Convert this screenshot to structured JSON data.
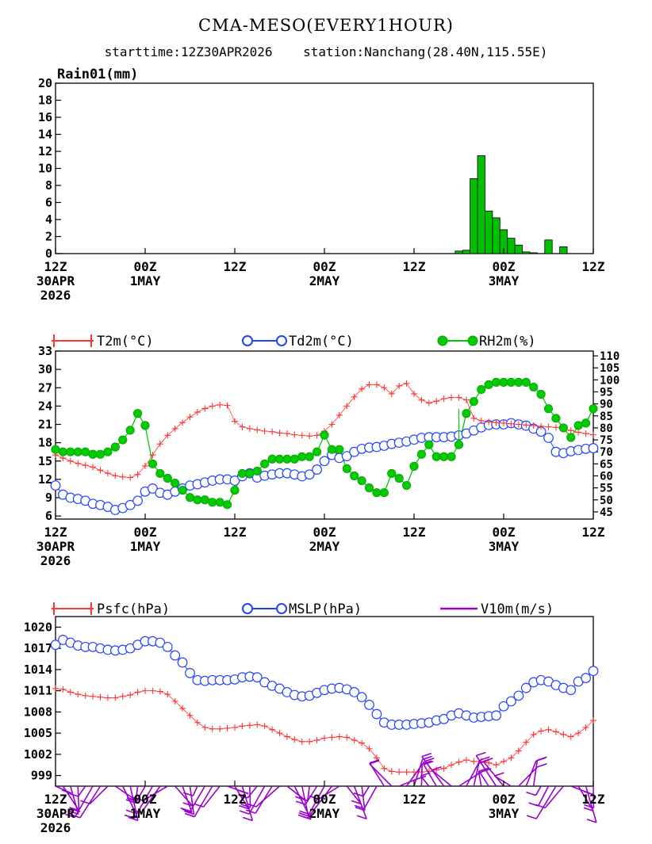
{
  "header": {
    "title": "CMA-MESO(EVERY1HOUR)",
    "subtitle": "starttime:12Z30APR2026    station:Nanchang(28.40N,115.55E)"
  },
  "colors": {
    "rain": "#00c000",
    "t2m": "#ff3333",
    "td2m": "#2244ff",
    "rh2m": "#00cc00",
    "psfc": "#ff3333",
    "mslp": "#2244ff",
    "wind": "#9900cc"
  },
  "x_ticks": [
    {
      "hour": 0,
      "lines": [
        "12Z",
        "30APR",
        "2026"
      ]
    },
    {
      "hour": 12,
      "lines": [
        "00Z",
        "1MAY"
      ]
    },
    {
      "hour": 24,
      "lines": [
        "12Z"
      ]
    },
    {
      "hour": 36,
      "lines": [
        "00Z",
        "2MAY"
      ]
    },
    {
      "hour": 48,
      "lines": [
        "12Z"
      ]
    },
    {
      "hour": 60,
      "lines": [
        "00Z",
        "3MAY"
      ]
    },
    {
      "hour": 72,
      "lines": [
        "12Z"
      ]
    }
  ],
  "chart_data": [
    {
      "type": "bar",
      "title": "Rain01(mm)",
      "x": [
        54,
        55,
        56,
        57,
        58,
        59,
        60,
        61,
        62,
        63,
        64,
        65,
        66,
        67,
        68,
        69,
        70
      ],
      "values": [
        0.3,
        0.4,
        8.8,
        11.5,
        5.0,
        4.2,
        2.8,
        1.8,
        1.0,
        0.2,
        0.1,
        0.0,
        1.6,
        0.0,
        0.8,
        0.0,
        0.0
      ],
      "xlim": [
        0,
        72
      ],
      "ylim": [
        0,
        20
      ],
      "yticks": [
        0,
        2,
        4,
        6,
        8,
        10,
        12,
        14,
        16,
        18,
        20
      ]
    },
    {
      "type": "line",
      "xlim": [
        0,
        72
      ],
      "y_left": {
        "ylim": [
          5.5,
          33
        ],
        "ticks": [
          6,
          9,
          12,
          15,
          18,
          21,
          24,
          27,
          30,
          33
        ]
      },
      "y_right": {
        "ylim": [
          42,
          112
        ],
        "ticks": [
          45,
          50,
          55,
          60,
          65,
          70,
          75,
          80,
          85,
          90,
          95,
          100,
          105,
          110
        ]
      },
      "series": [
        {
          "name": "T2m(°C)",
          "axis": "left",
          "marker": "plus",
          "values": [
            16.0,
            15.5,
            15.0,
            14.6,
            14.3,
            14.0,
            13.5,
            13.0,
            12.6,
            12.4,
            12.3,
            12.8,
            14.2,
            16.0,
            17.8,
            19.2,
            20.3,
            21.3,
            22.2,
            23.0,
            23.6,
            24.0,
            24.2,
            24.1,
            21.5,
            20.6,
            20.3,
            20.1,
            19.9,
            19.8,
            19.6,
            19.5,
            19.3,
            19.2,
            19.1,
            19.2,
            19.9,
            21.0,
            22.5,
            24.0,
            25.5,
            26.8,
            27.5,
            27.5,
            27.0,
            26.0,
            27.3,
            27.7,
            26.0,
            25.0,
            24.5,
            24.8,
            25.2,
            25.4,
            25.4,
            25.0,
            22.0,
            21.6,
            21.4,
            21.3,
            21.2,
            21.1,
            21.0,
            20.9,
            20.8,
            20.7,
            20.6,
            20.5,
            20.3,
            20.0,
            19.7,
            19.5,
            19.3
          ]
        },
        {
          "name": "Td2m(°C)",
          "axis": "left",
          "marker": "circle",
          "values": [
            11.0,
            9.5,
            9.0,
            8.8,
            8.5,
            8.0,
            7.8,
            7.5,
            7.0,
            7.3,
            7.8,
            8.5,
            10.0,
            10.5,
            9.8,
            9.5,
            10.0,
            10.5,
            11.0,
            11.2,
            11.5,
            11.8,
            12.0,
            12.0,
            11.8,
            12.5,
            13.0,
            12.3,
            12.6,
            12.8,
            13.0,
            13.0,
            12.8,
            12.5,
            12.8,
            13.6,
            15.0,
            16.0,
            15.5,
            15.8,
            16.5,
            17.0,
            17.2,
            17.3,
            17.5,
            17.8,
            18.0,
            18.2,
            18.5,
            18.8,
            18.9,
            18.9,
            18.9,
            19.0,
            19.2,
            19.5,
            20.0,
            20.5,
            20.9,
            21.0,
            21.0,
            21.2,
            21.0,
            20.8,
            20.3,
            19.8,
            18.8,
            16.5,
            16.3,
            16.6,
            16.8,
            17.0,
            17.1
          ]
        },
        {
          "name": "RH2m(%)",
          "axis": "right",
          "marker": "dot",
          "values": [
            71,
            70,
            70,
            70,
            70,
            69,
            69,
            70,
            72,
            75,
            79,
            86,
            81,
            65,
            61,
            59,
            57,
            54,
            51,
            50,
            50,
            49,
            49,
            48,
            54,
            61,
            61,
            62,
            65,
            67,
            67,
            67,
            67,
            68,
            68,
            70,
            77,
            71,
            71,
            63,
            60,
            58,
            55,
            53,
            53,
            61,
            59,
            56,
            64,
            69,
            73,
            68,
            68,
            68,
            73,
            86,
            91,
            96,
            98,
            99,
            99,
            99,
            99,
            99,
            97,
            94,
            88,
            84,
            80,
            76,
            81,
            82,
            88
          ]
        },
        {
          "name": "",
          "axis": "right",
          "marker": "none",
          "segment_from": 54,
          "values": [
            73,
            88
          ]
        }
      ],
      "legend": "top",
      "legend_entries": [
        "T2m(°C)",
        "Td2m(°C)",
        "RH2m(%)"
      ]
    },
    {
      "type": "line",
      "xlim": [
        0,
        72
      ],
      "ylim": [
        997.5,
        1021.5
      ],
      "yticks": [
        999,
        1002,
        1005,
        1008,
        1011,
        1014,
        1017,
        1020
      ],
      "series": [
        {
          "name": "Psfc(hPa)",
          "marker": "plus",
          "values": [
            1011.3,
            1011.2,
            1010.8,
            1010.5,
            1010.3,
            1010.2,
            1010.1,
            1010.0,
            1010.0,
            1010.2,
            1010.4,
            1010.8,
            1011.0,
            1011.0,
            1010.9,
            1010.5,
            1009.5,
            1008.5,
            1007.5,
            1006.5,
            1005.8,
            1005.6,
            1005.6,
            1005.7,
            1005.8,
            1006.0,
            1006.1,
            1006.2,
            1006.0,
            1005.5,
            1005.0,
            1004.5,
            1004.1,
            1003.8,
            1003.8,
            1004.0,
            1004.3,
            1004.4,
            1004.5,
            1004.4,
            1004.0,
            1003.6,
            1002.8,
            1001.5,
            1000.0,
            999.6,
            999.5,
            999.5,
            999.5,
            999.5,
            999.6,
            999.8,
            1000.0,
            1000.5,
            1000.9,
            1001.2,
            1001.0,
            1001.0,
            1000.8,
            1000.5,
            1001.0,
            1001.5,
            1002.5,
            1003.7,
            1004.8,
            1005.3,
            1005.5,
            1005.2,
            1004.8,
            1004.5,
            1005.0,
            1005.8,
            1006.8
          ]
        },
        {
          "name": "MSLP(hPa)",
          "marker": "circle",
          "values": [
            1017.5,
            1018.2,
            1017.8,
            1017.4,
            1017.2,
            1017.2,
            1017.0,
            1016.8,
            1016.7,
            1016.8,
            1017.0,
            1017.5,
            1018.0,
            1018.0,
            1017.8,
            1017.2,
            1016.0,
            1015.0,
            1013.5,
            1012.5,
            1012.4,
            1012.5,
            1012.5,
            1012.5,
            1012.6,
            1012.9,
            1013.0,
            1012.9,
            1012.2,
            1011.7,
            1011.3,
            1010.8,
            1010.4,
            1010.2,
            1010.3,
            1010.7,
            1011.1,
            1011.3,
            1011.4,
            1011.2,
            1010.8,
            1010.1,
            1009.0,
            1007.7,
            1006.5,
            1006.2,
            1006.2,
            1006.2,
            1006.3,
            1006.4,
            1006.5,
            1006.8,
            1007.0,
            1007.5,
            1007.8,
            1007.5,
            1007.2,
            1007.3,
            1007.4,
            1007.5,
            1008.8,
            1009.5,
            1010.3,
            1011.4,
            1012.2,
            1012.5,
            1012.3,
            1011.8,
            1011.4,
            1011.1,
            1012.3,
            1012.8,
            1013.8
          ]
        },
        {
          "name": "V10m(m/s)",
          "marker": "barb"
        }
      ],
      "legend": "top",
      "legend_entries": [
        "Psfc(hPa)",
        "MSLP(hPa)",
        "V10m(m/s)"
      ]
    }
  ]
}
